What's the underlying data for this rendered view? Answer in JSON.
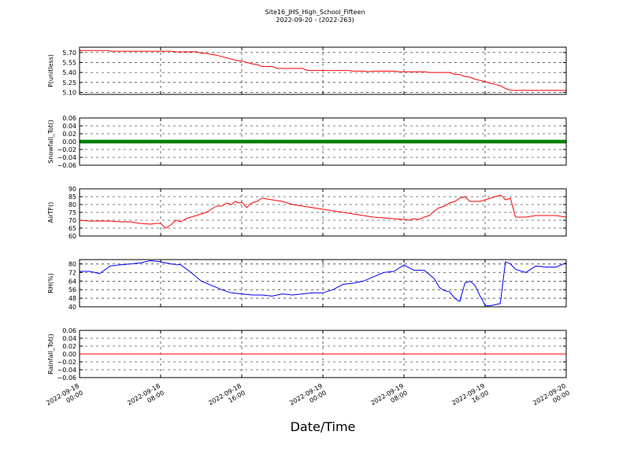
{
  "title_line1": "Site16_JHS_High_School_Fifteen",
  "title_line2": "2022-09-20 - (2022-263)",
  "xlabel": "Date/Time",
  "chart_data": {
    "x_range": [
      "2022-09-18 00:00",
      "2022-09-20 00:00"
    ],
    "x_ticks": [
      {
        "time": "2022-09-18 00:00",
        "label": [
          "2022-09-18",
          "00:00"
        ]
      },
      {
        "time": "2022-09-18 08:00",
        "label": [
          "2022-09-18",
          "08:00"
        ]
      },
      {
        "time": "2022-09-18 16:00",
        "label": [
          "2022-09-18",
          "16:00"
        ]
      },
      {
        "time": "2022-09-19 00:00",
        "label": [
          "2022-09-19",
          "00:00"
        ]
      },
      {
        "time": "2022-09-19 08:00",
        "label": [
          "2022-09-19",
          "08:00"
        ]
      },
      {
        "time": "2022-09-19 16:00",
        "label": [
          "2022-09-19",
          "16:00"
        ]
      },
      {
        "time": "2022-09-20 00:00",
        "label": [
          "2022-09-20",
          "00:00"
        ]
      }
    ],
    "grid": true,
    "panels": [
      {
        "type": "line",
        "ylabel": "P(unitless)",
        "ylim": [
          5.07,
          5.78
        ],
        "yticks": [
          5.1,
          5.25,
          5.4,
          5.55,
          5.7
        ],
        "ytick_labels": [
          "5.10",
          "5.25",
          "5.40",
          "5.55",
          "5.70"
        ],
        "color": "#ff0000",
        "marker": false,
        "x": [
          "2022-09-18 00:00",
          "2022-09-18 02:50",
          "2022-09-18 03:00",
          "2022-09-18 09:00",
          "2022-09-18 09:30",
          "2022-09-18 11:30",
          "2022-09-18 12:00",
          "2022-09-18 12:30",
          "2022-09-18 13:00",
          "2022-09-18 13:30",
          "2022-09-18 14:00",
          "2022-09-18 14:30",
          "2022-09-18 15:00",
          "2022-09-18 15:30",
          "2022-09-18 16:00",
          "2022-09-18 16:30",
          "2022-09-18 17:00",
          "2022-09-18 17:30",
          "2022-09-18 18:00",
          "2022-09-18 19:00",
          "2022-09-18 19:30",
          "2022-09-18 22:00",
          "2022-09-18 22:30",
          "2022-09-19 02:30",
          "2022-09-19 03:00",
          "2022-09-19 04:00",
          "2022-09-19 04:30",
          "2022-09-19 05:00",
          "2022-09-19 07:00",
          "2022-09-19 07:30",
          "2022-09-19 10:00",
          "2022-09-19 10:30",
          "2022-09-19 12:30",
          "2022-09-19 13:00",
          "2022-09-19 13:30",
          "2022-09-19 14:00",
          "2022-09-19 14:30",
          "2022-09-19 15:00",
          "2022-09-19 15:30",
          "2022-09-19 16:00",
          "2022-09-19 16:30",
          "2022-09-19 17:00",
          "2022-09-19 17:30",
          "2022-09-19 18:00",
          "2022-09-19 18:30",
          "2022-09-20 00:00"
        ],
        "y": [
          5.73,
          5.73,
          5.72,
          5.72,
          5.71,
          5.71,
          5.69,
          5.69,
          5.67,
          5.66,
          5.64,
          5.62,
          5.6,
          5.58,
          5.57,
          5.55,
          5.53,
          5.52,
          5.49,
          5.49,
          5.46,
          5.46,
          5.43,
          5.43,
          5.42,
          5.42,
          5.41,
          5.42,
          5.42,
          5.41,
          5.41,
          5.4,
          5.4,
          5.37,
          5.37,
          5.34,
          5.33,
          5.3,
          5.28,
          5.26,
          5.24,
          5.22,
          5.2,
          5.16,
          5.13,
          5.13
        ]
      },
      {
        "type": "scatter",
        "ylabel": "Snowfall_Tot()",
        "ylim": [
          -0.06,
          0.06
        ],
        "yticks": [
          -0.06,
          -0.04,
          -0.02,
          0.0,
          0.02,
          0.04,
          0.06
        ],
        "ytick_labels": [
          "−0.06",
          "−0.04",
          "−0.02",
          "0.00",
          "0.02",
          "0.04",
          "0.06"
        ],
        "color": "#008000",
        "marker": true,
        "constant_value": 0.0,
        "interval_minutes": 10
      },
      {
        "type": "line",
        "ylabel": "AirTF()",
        "ylim": [
          60,
          90
        ],
        "yticks": [
          60,
          65,
          70,
          75,
          80,
          85,
          90
        ],
        "ytick_labels": [
          "60",
          "65",
          "70",
          "75",
          "80",
          "85",
          "90"
        ],
        "color": "#ff0000",
        "marker": false,
        "x": [
          "2022-09-18 00:00",
          "2022-09-18 01:00",
          "2022-09-18 02:00",
          "2022-09-18 03:00",
          "2022-09-18 04:00",
          "2022-09-18 05:00",
          "2022-09-18 06:00",
          "2022-09-18 07:00",
          "2022-09-18 07:30",
          "2022-09-18 08:00",
          "2022-09-18 08:30",
          "2022-09-18 09:00",
          "2022-09-18 09:30",
          "2022-09-18 10:00",
          "2022-09-18 10:30",
          "2022-09-18 11:00",
          "2022-09-18 11:30",
          "2022-09-18 12:00",
          "2022-09-18 12:30",
          "2022-09-18 13:00",
          "2022-09-18 13:30",
          "2022-09-18 14:00",
          "2022-09-18 14:30",
          "2022-09-18 15:00",
          "2022-09-18 15:20",
          "2022-09-18 15:40",
          "2022-09-18 16:00",
          "2022-09-18 16:30",
          "2022-09-18 16:45",
          "2022-09-18 17:00",
          "2022-09-18 17:30",
          "2022-09-18 18:00",
          "2022-09-18 19:00",
          "2022-09-18 20:00",
          "2022-09-18 21:00",
          "2022-09-18 22:00",
          "2022-09-18 23:00",
          "2022-09-19 00:00",
          "2022-09-19 01:00",
          "2022-09-19 02:00",
          "2022-09-19 03:00",
          "2022-09-19 04:00",
          "2022-09-19 05:00",
          "2022-09-19 06:00",
          "2022-09-19 07:00",
          "2022-09-19 08:00",
          "2022-09-19 08:30",
          "2022-09-19 09:00",
          "2022-09-19 09:30",
          "2022-09-19 10:00",
          "2022-09-19 10:30",
          "2022-09-19 11:00",
          "2022-09-19 11:30",
          "2022-09-19 12:00",
          "2022-09-19 12:30",
          "2022-09-19 13:00",
          "2022-09-19 13:30",
          "2022-09-19 14:00",
          "2022-09-19 14:30",
          "2022-09-19 15:00",
          "2022-09-19 15:30",
          "2022-09-19 16:00",
          "2022-09-19 16:30",
          "2022-09-19 17:00",
          "2022-09-19 17:30",
          "2022-09-19 17:45",
          "2022-09-19 18:00",
          "2022-09-19 18:30",
          "2022-09-19 19:00",
          "2022-09-19 20:00",
          "2022-09-19 21:00",
          "2022-09-19 22:00",
          "2022-09-19 23:00",
          "2022-09-20 00:00"
        ],
        "y": [
          70,
          69.5,
          69.5,
          69.5,
          69,
          69,
          68,
          67.5,
          68,
          68,
          65,
          67,
          70,
          69,
          71,
          72,
          73,
          74,
          75,
          77,
          79,
          79,
          81,
          80,
          82,
          81,
          81.5,
          78,
          80,
          81,
          82,
          84,
          83,
          82,
          80,
          79,
          78,
          77,
          76,
          75,
          74,
          73,
          72,
          71.5,
          71,
          70.5,
          70,
          71,
          70.5,
          72,
          73,
          76,
          78,
          79,
          81,
          82,
          84,
          85,
          82,
          82,
          82,
          83,
          84,
          85,
          86,
          85,
          83,
          84,
          72,
          72,
          73,
          73,
          73,
          72
        ]
      },
      {
        "type": "line",
        "ylabel": "RH(%)",
        "ylim": [
          40,
          84
        ],
        "yticks": [
          40,
          48,
          56,
          64,
          72,
          80
        ],
        "ytick_labels": [
          "40",
          "48",
          "56",
          "64",
          "72",
          "80"
        ],
        "color": "#0000ff",
        "marker": false,
        "x": [
          "2022-09-18 00:00",
          "2022-09-18 01:00",
          "2022-09-18 02:00",
          "2022-09-18 03:00",
          "2022-09-18 04:00",
          "2022-09-18 05:00",
          "2022-09-18 06:00",
          "2022-09-18 07:00",
          "2022-09-18 08:00",
          "2022-09-18 09:00",
          "2022-09-18 10:00",
          "2022-09-18 11:00",
          "2022-09-18 12:00",
          "2022-09-18 13:00",
          "2022-09-18 14:00",
          "2022-09-18 15:00",
          "2022-09-18 16:00",
          "2022-09-18 17:00",
          "2022-09-18 18:00",
          "2022-09-18 19:00",
          "2022-09-18 20:00",
          "2022-09-18 21:00",
          "2022-09-18 22:00",
          "2022-09-18 23:00",
          "2022-09-19 00:00",
          "2022-09-19 01:00",
          "2022-09-19 02:00",
          "2022-09-19 03:00",
          "2022-09-19 04:00",
          "2022-09-19 05:00",
          "2022-09-19 06:00",
          "2022-09-19 07:00",
          "2022-09-19 08:00",
          "2022-09-19 09:00",
          "2022-09-19 10:00",
          "2022-09-19 11:00",
          "2022-09-19 11:30",
          "2022-09-19 12:00",
          "2022-09-19 12:30",
          "2022-09-19 13:00",
          "2022-09-19 13:30",
          "2022-09-19 14:00",
          "2022-09-19 14:30",
          "2022-09-19 15:00",
          "2022-09-19 15:30",
          "2022-09-19 15:45",
          "2022-09-19 16:00",
          "2022-09-19 16:30",
          "2022-09-19 17:00",
          "2022-09-19 17:30",
          "2022-09-19 18:00",
          "2022-09-19 18:30",
          "2022-09-19 19:00",
          "2022-09-19 20:00",
          "2022-09-19 21:00",
          "2022-09-19 22:00",
          "2022-09-19 23:00",
          "2022-09-20 00:00"
        ],
        "y": [
          73,
          73,
          71,
          78,
          79,
          80,
          81,
          83,
          82,
          80,
          79,
          72,
          64,
          60,
          56,
          53,
          52,
          51,
          51,
          50,
          52,
          51,
          52,
          53,
          53,
          56,
          61,
          62,
          64,
          68,
          72,
          73,
          79,
          74,
          74,
          66,
          58,
          55,
          54,
          48,
          45,
          62,
          64,
          60,
          50,
          46,
          41,
          41,
          42,
          43,
          82,
          80,
          75,
          72,
          78,
          77,
          77,
          81
        ]
      },
      {
        "type": "line",
        "ylabel": "Rainfall_Tot()",
        "ylim": [
          -0.06,
          0.06
        ],
        "yticks": [
          -0.06,
          -0.04,
          -0.02,
          0.0,
          0.02,
          0.04,
          0.06
        ],
        "ytick_labels": [
          "−0.06",
          "−0.04",
          "−0.02",
          "0.00",
          "0.02",
          "0.04",
          "0.06"
        ],
        "color": "#ff0000",
        "marker": false,
        "constant_value": 0.0,
        "x": [
          "2022-09-18 00:00",
          "2022-09-20 00:00"
        ],
        "y": [
          0.0,
          0.0
        ]
      }
    ]
  }
}
